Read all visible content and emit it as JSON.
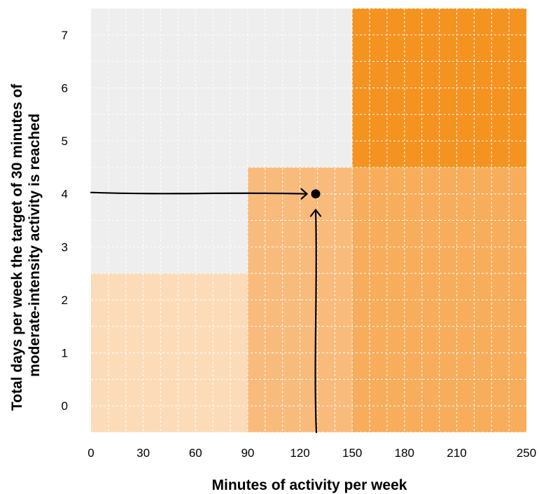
{
  "chart_data": {
    "type": "heatmap",
    "xlabel": "Minutes of activity per week",
    "ylabel_lines": [
      "Total days per week the target of 30 minutes of",
      "moderate-intensity activity is reached"
    ],
    "xlim": [
      0,
      250
    ],
    "ylim": [
      -0.5,
      7.5
    ],
    "x_ticks": [
      0,
      30,
      60,
      90,
      120,
      150,
      180,
      210,
      250
    ],
    "y_ticks": [
      0,
      1,
      2,
      3,
      4,
      5,
      6,
      7
    ],
    "grid": true,
    "background_color": "#eeeeee",
    "regions": [
      {
        "x": [
          0,
          90
        ],
        "y": [
          -0.5,
          2.5
        ],
        "color": "#fcdcb8"
      },
      {
        "x": [
          90,
          150
        ],
        "y": [
          -0.5,
          4.5
        ],
        "color": "#f9bb7c"
      },
      {
        "x": [
          150,
          250
        ],
        "y": [
          -0.5,
          4.5
        ],
        "color": "#f7ad5c"
      },
      {
        "x": [
          150,
          250
        ],
        "y": [
          4.5,
          7.5
        ],
        "color": "#f59321"
      }
    ],
    "highlight_point": {
      "x": 129,
      "y": 4
    },
    "arrows": [
      {
        "from": [
          0,
          4
        ],
        "to": [
          124,
          4
        ]
      },
      {
        "from": [
          129,
          -0.5
        ],
        "to": [
          129,
          3.7
        ]
      }
    ]
  }
}
